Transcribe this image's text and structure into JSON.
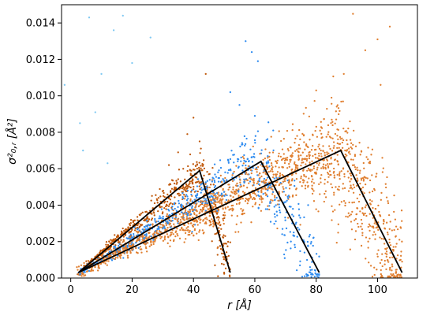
{
  "chart_data": {
    "type": "scatter",
    "title": "",
    "xlabel": "r  [Å]",
    "ylabel": "σ²₀,ᵣ  [Å²]",
    "xlim": [
      -3,
      113
    ],
    "ylim": [
      0,
      0.015
    ],
    "x_ticks": [
      0,
      20,
      40,
      60,
      80,
      100
    ],
    "x_tick_labels": [
      "0",
      "20",
      "40",
      "60",
      "80",
      "100"
    ],
    "y_ticks": [
      0,
      0.002,
      0.004,
      0.006,
      0.008,
      0.01,
      0.012,
      0.014
    ],
    "y_tick_labels": [
      "0.000",
      "0.002",
      "0.004",
      "0.006",
      "0.008",
      "0.010",
      "0.012",
      "0.014"
    ],
    "grid": false,
    "legend": null,
    "colors": {
      "orange": "#E07F30",
      "dark_orange": "#C0580A",
      "blue": "#2F8CF0",
      "light_blue": "#7EC8F2",
      "line": "#000000",
      "axes": "#000000"
    },
    "scatter_series": [
      {
        "color_key": "dark_orange",
        "description": "small system, r ≈ 2–51 Å",
        "peak_curve": [
          [
            2,
            0.0002
          ],
          [
            10,
            0.0014
          ],
          [
            20,
            0.0028
          ],
          [
            30,
            0.0041
          ],
          [
            38,
            0.0052
          ],
          [
            42,
            0.0057
          ],
          [
            46,
            0.004
          ],
          [
            49,
            0.0022
          ],
          [
            52,
            0.0004
          ]
        ],
        "n_points": 520,
        "x_range": [
          2,
          52
        ],
        "spread": 0.00055,
        "outliers": [
          [
            32,
            0.0062
          ],
          [
            35,
            0.0069
          ],
          [
            40,
            0.0088
          ],
          [
            44,
            0.0112
          ],
          [
            38,
            0.0079
          ],
          [
            42,
            0.0075
          ],
          [
            47,
            0.0007
          ],
          [
            50,
            0.0003
          ],
          [
            48,
            0.0001
          ]
        ]
      },
      {
        "color_key": "blue",
        "description": "medium system, r ≈ 2–80 Å",
        "peak_curve": [
          [
            2,
            0.0002
          ],
          [
            15,
            0.0015
          ],
          [
            30,
            0.0031
          ],
          [
            45,
            0.0047
          ],
          [
            55,
            0.006
          ],
          [
            60,
            0.0064
          ],
          [
            65,
            0.005
          ],
          [
            70,
            0.0035
          ],
          [
            75,
            0.002
          ],
          [
            80,
            0.0003
          ]
        ],
        "n_points": 620,
        "x_range": [
          2,
          81
        ],
        "spread": 0.0008,
        "outliers": [
          [
            57,
            0.013
          ],
          [
            59,
            0.0124
          ],
          [
            61,
            0.0119
          ],
          [
            52,
            0.0102
          ],
          [
            55,
            0.0095
          ],
          [
            60,
            0.0089
          ],
          [
            66,
            0.0081
          ],
          [
            78,
            0.0006
          ],
          [
            80,
            0.0002
          ]
        ]
      },
      {
        "color_key": "orange",
        "description": "large system, r ≈ 2–108 Å",
        "peak_curve": [
          [
            2,
            0.0002
          ],
          [
            20,
            0.0018
          ],
          [
            40,
            0.0034
          ],
          [
            60,
            0.0051
          ],
          [
            75,
            0.0063
          ],
          [
            85,
            0.0068
          ],
          [
            90,
            0.006
          ],
          [
            95,
            0.0045
          ],
          [
            100,
            0.003
          ],
          [
            105,
            0.0015
          ],
          [
            108,
            0.0004
          ]
        ],
        "n_points": 1700,
        "x_range": [
          2,
          108
        ],
        "spread": 0.0012,
        "outliers": [
          [
            92,
            0.0145
          ],
          [
            104,
            0.0138
          ],
          [
            100,
            0.0131
          ],
          [
            96,
            0.0125
          ],
          [
            89,
            0.0112
          ],
          [
            101,
            0.0106
          ],
          [
            80,
            0.0103
          ],
          [
            85,
            0.0099
          ],
          [
            106,
            0.0023
          ],
          [
            108,
            0.0009
          ]
        ]
      },
      {
        "color_key": "light_blue",
        "description": "sparse faint points",
        "points": [
          [
            -2,
            0.0106
          ],
          [
            3,
            0.0085
          ],
          [
            4,
            0.007
          ],
          [
            6,
            0.0143
          ],
          [
            8,
            0.0091
          ],
          [
            10,
            0.0112
          ],
          [
            14,
            0.0136
          ],
          [
            17,
            0.0144
          ],
          [
            20,
            0.0118
          ],
          [
            26,
            0.0132
          ],
          [
            12,
            0.0063
          ]
        ]
      }
    ],
    "fit_lines": [
      {
        "points": [
          [
            2.5,
            0.0003
          ],
          [
            42,
            0.0059
          ],
          [
            52,
            0.0003
          ]
        ]
      },
      {
        "points": [
          [
            2.5,
            0.0003
          ],
          [
            62,
            0.0064
          ],
          [
            81,
            0.0003
          ]
        ]
      },
      {
        "points": [
          [
            2.5,
            0.0003
          ],
          [
            88,
            0.007
          ],
          [
            108,
            0.0003
          ]
        ]
      }
    ]
  }
}
